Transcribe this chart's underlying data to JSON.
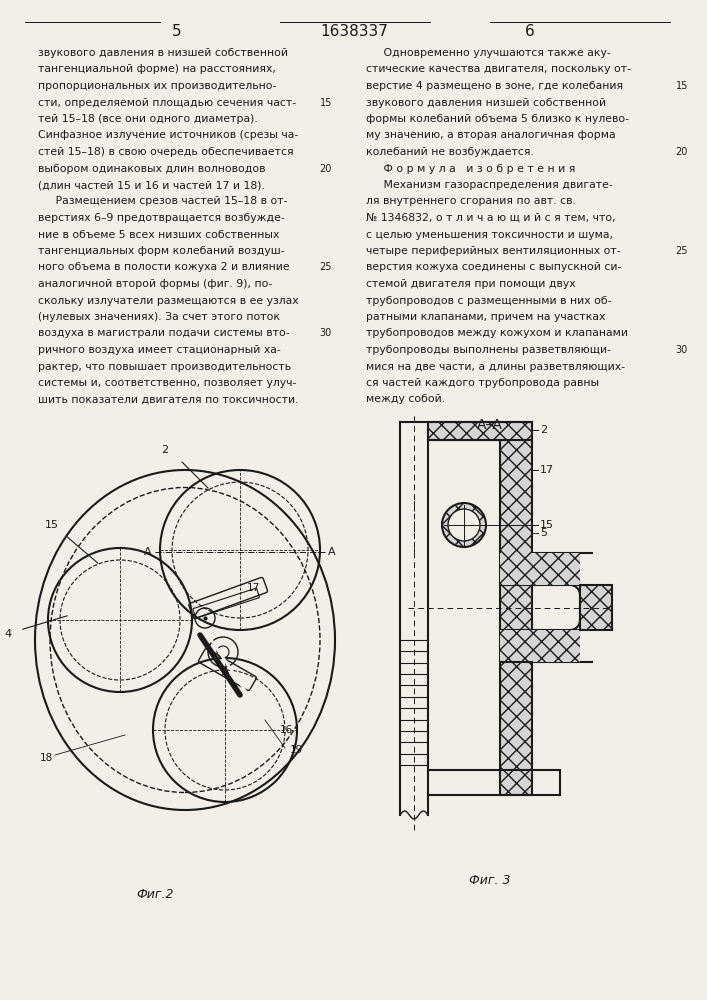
{
  "page_number_left": "5",
  "patent_number": "1638337",
  "page_number_right": "6",
  "background_color": "#f2efe9",
  "text_color": "#1a1a1a",
  "left_col": [
    "звукового давления в низшей собственной",
    "тангенциальной форме) на расстояниях,",
    "пропорциональных их производительно-",
    "сти, определяемой площадью сечения част-",
    "тей 15–18 (все они одного диаметра).",
    "Синфазное излучение источников (срезы ча-",
    "стей 15–18) в свою очередь обеспечивается",
    "выбором одинаковых длин волноводов",
    "(длин частей 15 и 16 и частей 17 и 18).",
    "     Размещением срезов частей 15–18 в от-",
    "верстиях 6–9 предотвращается возбужде-",
    "ние в объеме 5 всех низших собственных",
    "тангенциальных форм колебаний воздуш-",
    "ного объема в полости кожуха 2 и влияние",
    "аналогичной второй формы (фиг. 9), по-",
    "скольку излучатели размещаются в ее узлах",
    "(нулевых значениях). За счет этого поток",
    "воздуха в магистрали подачи системы вто-",
    "ричного воздуха имеет стационарный ха-",
    "рактер, что повышает производительность",
    "системы и, соответственно, позволяет улуч-",
    "шить показатели двигателя по токсичности."
  ],
  "right_col": [
    "     Одновременно улучшаются также аку-",
    "стические качества двигателя, поскольку от-",
    "верстие 4 размещено в зоне, где колебания",
    "звукового давления низшей собственной",
    "формы колебаний объема 5 близко к нулево-",
    "му значению, а вторая аналогичная форма",
    "колебаний не возбуждается.",
    "     Ф о р м у л а   и з о б р е т е н и я",
    "     Механизм газораспределения двигате-",
    "ля внутреннего сгорания по авт. св.",
    "№ 1346832, о т л и ч а ю щ и й с я тем, что,",
    "с целью уменьшения токсичности и шума,",
    "четыре периферийных вентиляционных от-",
    "верстия кожуха соединены с выпускной си-",
    "стемой двигателя при помощи двух",
    "трубопроводов с размещенными в них об-",
    "ратными клапанами, причем на участках",
    "трубопроводов между кожухом и клапанами",
    "трубопроводы выполнены разветвляющи-",
    "мися на две части, а длины разветвляющих-",
    "ся частей каждого трубопровода равны",
    "между собой."
  ],
  "fig2_label": "Фиг.2",
  "fig3_label": "Фиг. 3",
  "aa_label": "А–А"
}
